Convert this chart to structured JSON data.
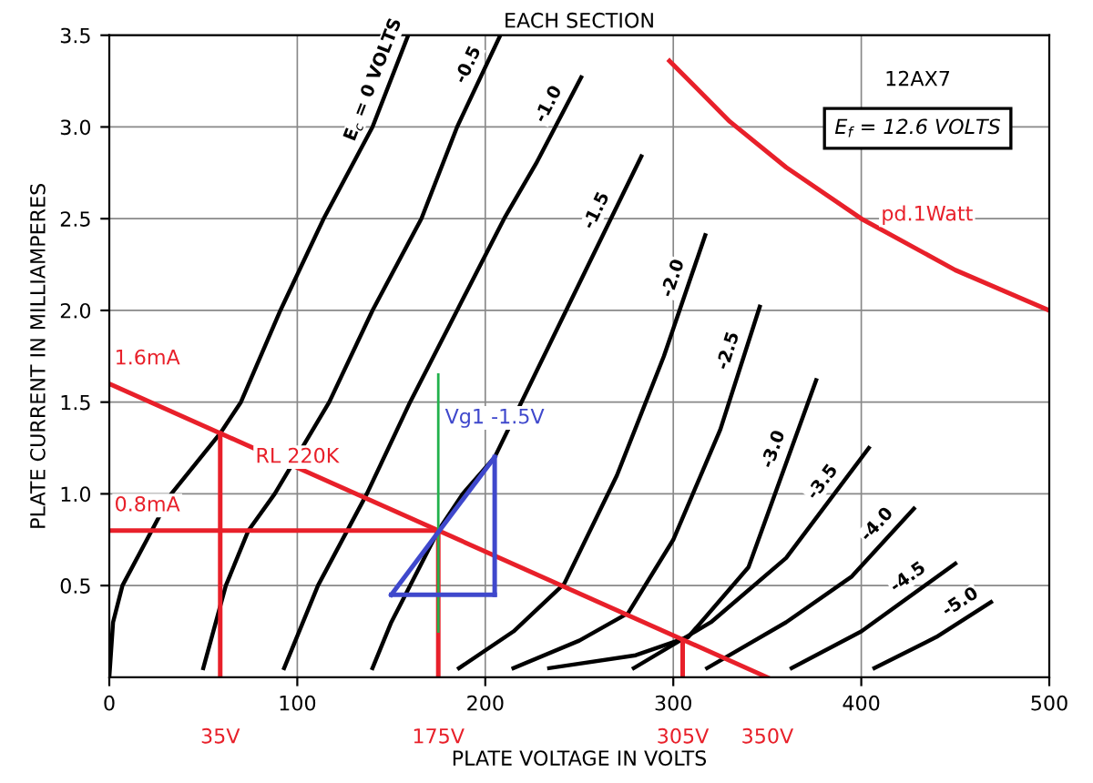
{
  "chart_data": {
    "type": "line",
    "title": "EACH SECTION",
    "xlabel": "PLATE VOLTAGE IN VOLTS",
    "ylabel": "PLATE CURRENT IN MILLIAMPERES",
    "xlim": [
      0,
      500
    ],
    "ylim": [
      0,
      3.5
    ],
    "xticks": [
      0,
      100,
      200,
      300,
      400,
      500
    ],
    "yticks": [
      {
        "value": 0.5,
        "label": "0.5"
      },
      {
        "value": 1,
        "label": "1.0"
      },
      {
        "value": 1.5,
        "label": "1.5"
      },
      {
        "value": 2,
        "label": "2.0"
      },
      {
        "value": 2.5,
        "label": "2.5"
      },
      {
        "value": 3,
        "label": "3.0"
      },
      {
        "value": 3.5,
        "label": "3.5"
      }
    ],
    "grid": true,
    "marker": "none",
    "line_style": "solid",
    "series": [
      {
        "name": "E$_{c}$ = 0 VOLTS",
        "color": "#000000",
        "x": [
          0,
          2,
          7,
          20,
          33,
          59,
          70,
          91,
          114,
          140,
          159
        ],
        "values": [
          0,
          0.3,
          0.5,
          0.75,
          1.0,
          1.33,
          1.5,
          2.0,
          2.5,
          3.0,
          3.5
        ]
      },
      {
        "name": "-0.5",
        "color": "#000000",
        "x": [
          50,
          62,
          74,
          88,
          117,
          140,
          166,
          185,
          208
        ],
        "values": [
          0.05,
          0.5,
          0.8,
          1.0,
          1.5,
          2.0,
          2.5,
          3.0,
          3.5
        ]
      },
      {
        "name": "-1.0",
        "color": "#000000",
        "x": [
          93,
          111,
          137,
          160,
          185,
          210,
          227,
          251
        ],
        "values": [
          0.05,
          0.5,
          1.0,
          1.5,
          2.0,
          2.5,
          2.8,
          3.27
        ]
      },
      {
        "name": "-1.5",
        "color": "#000000",
        "x": [
          140,
          150,
          160,
          175,
          188,
          205,
          243,
          283
        ],
        "values": [
          0.05,
          0.3,
          0.5,
          0.8,
          1.0,
          1.2,
          2.0,
          2.84
        ]
      },
      {
        "name": "-2.0",
        "color": "#000000",
        "x": [
          186,
          215,
          242,
          270,
          295,
          317
        ],
        "values": [
          0.05,
          0.25,
          0.51,
          1.1,
          1.75,
          2.41
        ]
      },
      {
        "name": "-2.5",
        "color": "#000000",
        "x": [
          215,
          250,
          276,
          300,
          325,
          346
        ],
        "values": [
          0.05,
          0.2,
          0.35,
          0.75,
          1.35,
          2.02
        ]
      },
      {
        "name": "-3.0",
        "color": "#000000",
        "x": [
          234,
          280,
          308,
          340,
          376
        ],
        "values": [
          0.05,
          0.12,
          0.22,
          0.6,
          1.62
        ]
      },
      {
        "name": "-3.5",
        "color": "#000000",
        "x": [
          279,
          320,
          360,
          404
        ],
        "values": [
          0.05,
          0.3,
          0.65,
          1.25
        ]
      },
      {
        "name": "-4.0",
        "color": "#000000",
        "x": [
          318,
          360,
          395,
          428
        ],
        "values": [
          0.05,
          0.3,
          0.55,
          0.92
        ]
      },
      {
        "name": "-4.5",
        "color": "#000000",
        "x": [
          363,
          400,
          450
        ],
        "values": [
          0.05,
          0.25,
          0.62
        ]
      },
      {
        "name": "-5.0",
        "color": "#000000",
        "x": [
          407,
          440,
          469
        ],
        "values": [
          0.05,
          0.22,
          0.41
        ]
      },
      {
        "color": "#e8202a",
        "x": [
          298,
          330,
          360,
          400,
          450,
          500
        ],
        "values": [
          3.36,
          3.03,
          2.78,
          2.5,
          2.22,
          2.0
        ]
      },
      {
        "color": "#e8202a",
        "x": [
          0,
          350
        ],
        "values": [
          1.6,
          0
        ]
      },
      {
        "color": "#e8202a",
        "x": [
          0,
          175
        ],
        "values": [
          0.8,
          0.8
        ]
      },
      {
        "color": "#e8202a",
        "x": [
          59,
          59
        ],
        "values": [
          0,
          1.33
        ]
      },
      {
        "color": "#e8202a",
        "x": [
          175,
          175
        ],
        "values": [
          0,
          0.8
        ]
      },
      {
        "color": "#e8202a",
        "x": [
          305,
          305
        ],
        "values": [
          0,
          0.2
        ]
      },
      {
        "color": "#22b14c",
        "x": [
          175,
          175
        ],
        "values": [
          0.25,
          1.65
        ]
      },
      {
        "color": "#3f48cc",
        "x": [
          150,
          205
        ],
        "values": [
          0.45,
          0.45
        ]
      },
      {
        "color": "#3f48cc",
        "x": [
          205,
          205
        ],
        "values": [
          0.45,
          1.2
        ]
      },
      {
        "color": "#3f48cc",
        "x": [
          150,
          205
        ],
        "values": [
          0.45,
          1.2
        ]
      }
    ],
    "annotations": [
      "12AX7",
      "E$_{f}$ = 12.6 VOLTS",
      "pd.1Watt",
      {
        "text": "RL 220K",
        "x": 100,
        "y": 1.2
      },
      {
        "text": "Vg1 -1.5V",
        "x": 205,
        "y": 1.25
      },
      {
        "text": "1.6mA",
        "x": 0,
        "y": 1.6
      },
      {
        "text": "0.8mA",
        "x": 0,
        "y": 0.8
      },
      {
        "text": "35V",
        "x": 59,
        "y": 0
      },
      {
        "text": "175V",
        "x": 175,
        "y": 0
      },
      {
        "text": "305V",
        "x": 305,
        "y": 0
      },
      {
        "text": "350V",
        "x": 350,
        "y": 0
      }
    ]
  }
}
